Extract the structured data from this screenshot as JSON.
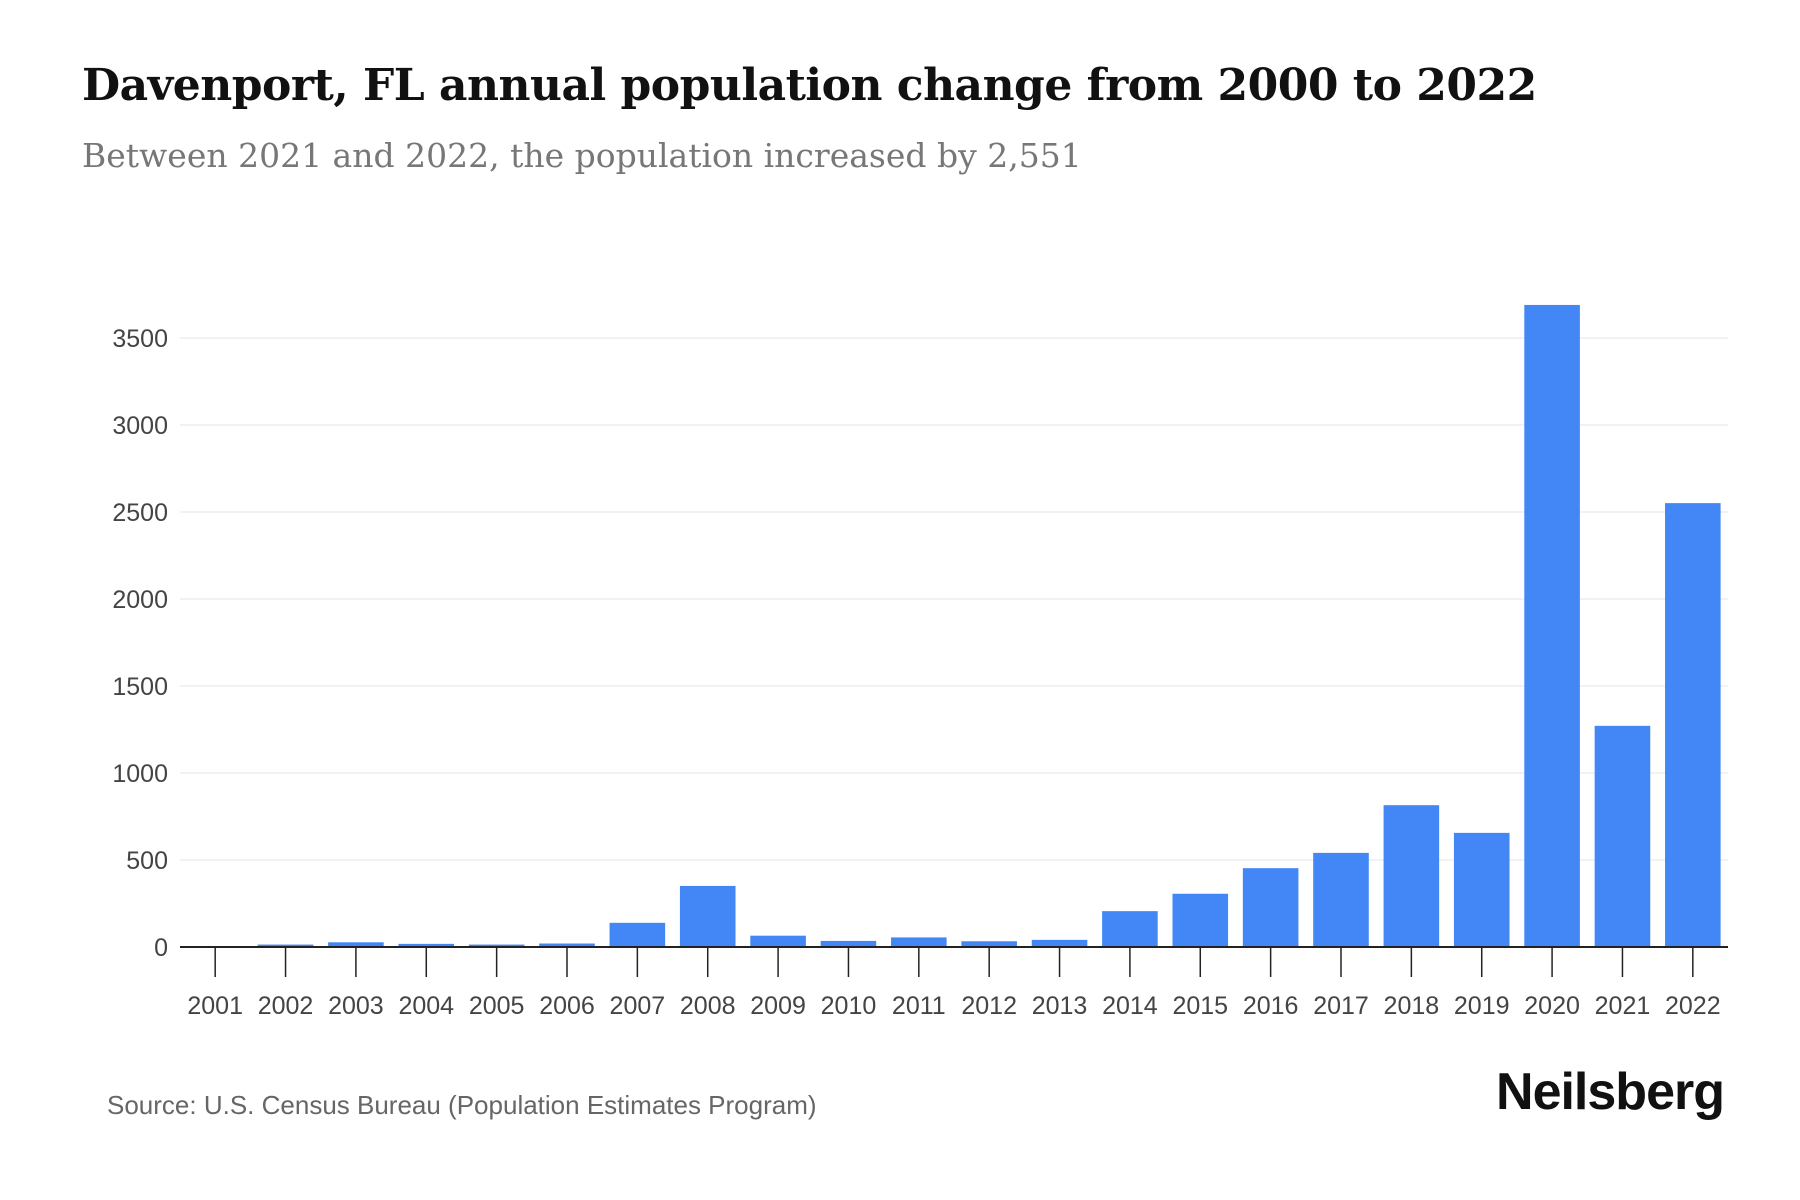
{
  "chart_data": {
    "type": "bar",
    "title": "Davenport, FL annual population change from 2000 to 2022",
    "subtitle": "Between 2021 and 2022, the population increased by 2,551",
    "categories": [
      "2001",
      "2002",
      "2003",
      "2004",
      "2005",
      "2006",
      "2007",
      "2008",
      "2009",
      "2010",
      "2011",
      "2012",
      "2013",
      "2014",
      "2015",
      "2016",
      "2017",
      "2018",
      "2019",
      "2020",
      "2021",
      "2022"
    ],
    "values": [
      0,
      14,
      27,
      18,
      14,
      20,
      139,
      351,
      65,
      35,
      55,
      33,
      41,
      206,
      306,
      453,
      541,
      815,
      656,
      3690,
      1271,
      2551
    ],
    "yticks": [
      0,
      500,
      1000,
      1500,
      2000,
      2500,
      3000,
      3500
    ],
    "ylim": [
      0,
      3700
    ],
    "xlabel": "",
    "ylabel": "",
    "grid": true,
    "bar_color": "#4287f5"
  },
  "footer": {
    "source": "Source: U.S. Census Bureau (Population Estimates Program)",
    "logo": "Neilsberg"
  }
}
